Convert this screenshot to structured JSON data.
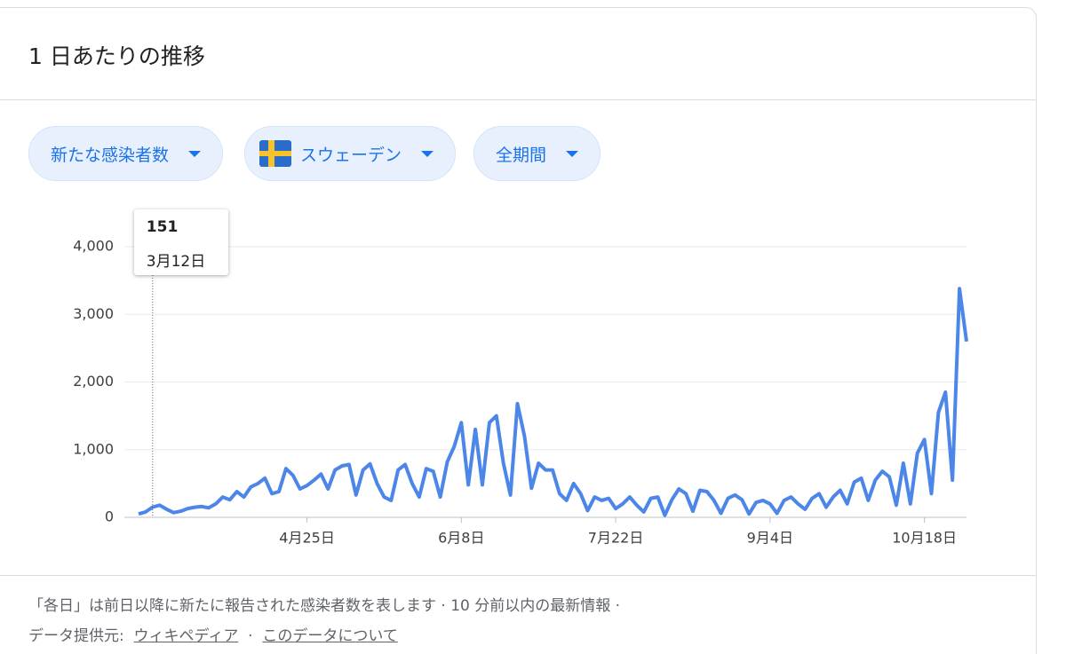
{
  "header": {
    "title": "1 日あたりの推移"
  },
  "filters": [
    "新たな感染者数",
    "スウェーデン",
    "全期間"
  ],
  "chart_data": {
    "type": "line",
    "categories": [
      null,
      null,
      null,
      null,
      null,
      null,
      null,
      null,
      null,
      null,
      null,
      null,
      null,
      null,
      null,
      null,
      null,
      null,
      null,
      null,
      null,
      null,
      null,
      null,
      "4月25日",
      null,
      null,
      null,
      null,
      null,
      null,
      null,
      null,
      null,
      null,
      null,
      null,
      null,
      null,
      null,
      null,
      null,
      null,
      null,
      null,
      null,
      "6月8日",
      null,
      null,
      null,
      null,
      null,
      null,
      null,
      null,
      null,
      null,
      null,
      null,
      null,
      null,
      null,
      null,
      null,
      null,
      null,
      null,
      null,
      "7月22日",
      null,
      null,
      null,
      null,
      null,
      null,
      null,
      null,
      null,
      null,
      null,
      null,
      null,
      null,
      null,
      null,
      null,
      null,
      null,
      null,
      null,
      "9月4日",
      null,
      null,
      null,
      null,
      null,
      null,
      null,
      null,
      null,
      null,
      null,
      null,
      null,
      null,
      null,
      null,
      null,
      null,
      null,
      null,
      null,
      "10月18日",
      null,
      null,
      null,
      null,
      null,
      null
    ],
    "values": [
      50,
      80,
      151,
      180,
      120,
      70,
      90,
      130,
      150,
      160,
      140,
      200,
      300,
      260,
      380,
      300,
      450,
      500,
      580,
      350,
      380,
      720,
      620,
      420,
      470,
      550,
      640,
      420,
      700,
      760,
      780,
      330,
      700,
      790,
      500,
      300,
      250,
      700,
      780,
      500,
      300,
      720,
      680,
      300,
      820,
      1050,
      1400,
      480,
      1300,
      480,
      1400,
      1500,
      800,
      330,
      1680,
      1200,
      430,
      800,
      700,
      700,
      350,
      250,
      500,
      350,
      100,
      300,
      250,
      280,
      130,
      200,
      300,
      180,
      80,
      280,
      300,
      30,
      260,
      420,
      350,
      90,
      400,
      380,
      250,
      60,
      280,
      330,
      260,
      50,
      220,
      250,
      200,
      60,
      250,
      300,
      200,
      120,
      280,
      350,
      150,
      300,
      400,
      200,
      520,
      580,
      250,
      550,
      680,
      600,
      180,
      800,
      200,
      950,
      1150,
      350,
      1550,
      1850,
      550,
      3380,
      2600
    ],
    "color": "#4c86e8",
    "ylim": [
      0,
      4000
    ],
    "yticks": [
      0,
      {
        "value": 1000,
        "label": "1,000"
      },
      {
        "value": 2000,
        "label": "2,000"
      },
      {
        "value": 3000,
        "label": "3,000"
      },
      {
        "value": 4000,
        "label": "4,000"
      }
    ],
    "grid": true,
    "tooltip": {
      "index": 2,
      "label": "3月12日"
    }
  },
  "footer": {
    "note": "「各日」は前日以降に新たに報告された感染者数を表します · 10 分前以内の最新情報 ·",
    "source_label": "データ提供元:",
    "links": [
      "ウィキペディア",
      "このデータについて"
    ],
    "separator": "·"
  }
}
